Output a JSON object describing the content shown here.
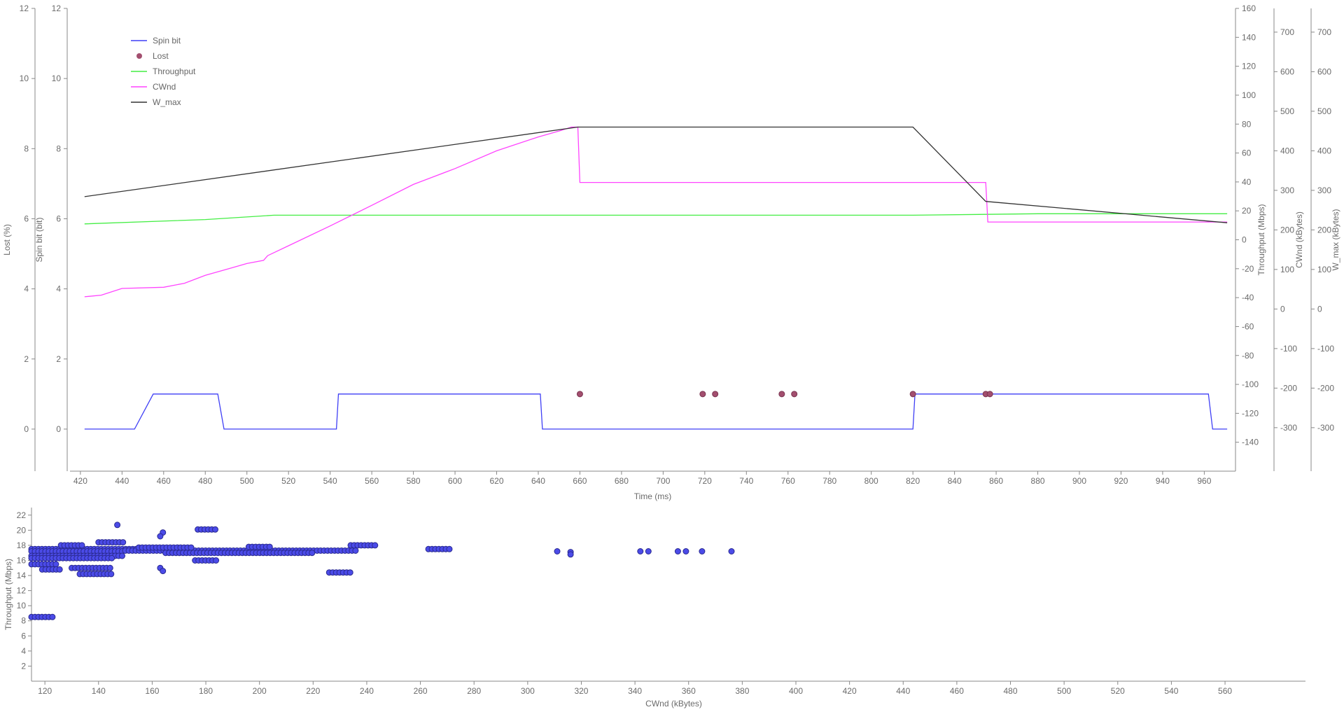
{
  "chart_data": [
    {
      "type": "line",
      "xlabel": "Time (ms)",
      "xlim": [
        415,
        975
      ],
      "x_ticks": [
        420,
        440,
        460,
        480,
        500,
        520,
        540,
        560,
        580,
        600,
        620,
        640,
        660,
        680,
        700,
        720,
        740,
        760,
        780,
        800,
        820,
        840,
        860,
        880,
        900,
        920,
        940,
        960
      ],
      "axes": {
        "lost": {
          "label": "Lost (%)",
          "ylim": [
            -1.2,
            12
          ],
          "ticks": [
            0,
            2,
            4,
            6,
            8,
            10,
            12
          ]
        },
        "spin": {
          "label": "Spin bit (bit)",
          "ylim": [
            -1.2,
            12
          ],
          "ticks": [
            0,
            2,
            4,
            6,
            8,
            10,
            12
          ]
        },
        "throughput": {
          "label": "Throughput (Mbps)",
          "ylim": [
            -160,
            160
          ],
          "ticks": [
            -140,
            -120,
            -100,
            -80,
            -60,
            -40,
            -20,
            0,
            20,
            40,
            60,
            80,
            100,
            120,
            140,
            160
          ]
        },
        "cwnd": {
          "label": "CWnd (kBytes)",
          "ylim": [
            -410,
            760
          ],
          "ticks": [
            -300,
            -200,
            -100,
            0,
            100,
            200,
            300,
            400,
            500,
            600,
            700
          ]
        },
        "wmax": {
          "label": "W_max (kBytes)",
          "ylim": [
            -410,
            760
          ],
          "ticks": [
            -300,
            -200,
            -100,
            0,
            100,
            200,
            300,
            400,
            500,
            600,
            700
          ]
        }
      },
      "legend": {
        "placement": "top-left",
        "entries": [
          {
            "name": "Spin bit",
            "color": "#3f3ff5",
            "marker": "line"
          },
          {
            "name": "Lost",
            "color": "#a34f6f",
            "marker": "dot"
          },
          {
            "name": "Throughput",
            "color": "#44ee44",
            "marker": "line"
          },
          {
            "name": "CWnd",
            "color": "#ff44ff",
            "marker": "line"
          },
          {
            "name": "W_max",
            "color": "#333333",
            "marker": "line"
          }
        ]
      },
      "series": [
        {
          "name": "Spin bit",
          "axis": "spin",
          "color": "#3f3ff5",
          "x": [
            422,
            446,
            455,
            486,
            489,
            543,
            544,
            641,
            642,
            820,
            821,
            962,
            964,
            971
          ],
          "y": [
            0,
            0,
            1,
            1,
            0,
            0,
            1,
            1,
            0,
            0,
            1,
            1,
            0,
            0
          ]
        },
        {
          "name": "Lost",
          "axis": "lost",
          "color": "#a34f6f",
          "kind": "scatter",
          "x": [
            660,
            719,
            725,
            757,
            763,
            820,
            855,
            857
          ],
          "y": [
            1,
            1,
            1,
            1,
            1,
            1,
            1,
            1
          ]
        },
        {
          "name": "Throughput",
          "axis": "throughput",
          "color": "#44ee44",
          "x": [
            422,
            480,
            513,
            600,
            700,
            820,
            880,
            971
          ],
          "y": [
            11,
            14,
            17,
            17,
            17,
            17,
            18,
            18
          ]
        },
        {
          "name": "CWnd",
          "axis": "cwnd",
          "color": "#ff44ff",
          "x": [
            422,
            430,
            440,
            460,
            470,
            480,
            490,
            500,
            508,
            510,
            520,
            540,
            560,
            580,
            600,
            620,
            640,
            650,
            656,
            658,
            659,
            660,
            700,
            800,
            854,
            855,
            856,
            971
          ],
          "y": [
            31,
            35,
            52,
            55,
            65,
            85,
            100,
            115,
            123,
            135,
            160,
            210,
            262,
            315,
            355,
            400,
            435,
            450,
            460,
            460,
            460,
            320,
            320,
            320,
            320,
            320,
            220,
            220
          ]
        },
        {
          "name": "W_max",
          "axis": "wmax",
          "color": "#333333",
          "x": [
            422,
            659,
            820,
            855,
            971
          ],
          "y": [
            284,
            460,
            460,
            272,
            218
          ]
        }
      ]
    },
    {
      "type": "scatter",
      "xlabel": "CWnd (kBytes)",
      "ylabel": "Throughput (Mbps)",
      "xlim": [
        115,
        590
      ],
      "ylim": [
        0,
        23
      ],
      "x_ticks": [
        120,
        140,
        160,
        180,
        200,
        220,
        240,
        260,
        280,
        300,
        320,
        340,
        360,
        380,
        400,
        420,
        440,
        460,
        480,
        500,
        520,
        540,
        560
      ],
      "y_ticks": [
        2,
        4,
        6,
        8,
        10,
        12,
        14,
        16,
        18,
        20,
        22
      ],
      "color": "#4b4be8",
      "clusters": [
        {
          "x_from": 115,
          "x_to": 165,
          "y": 17.5
        },
        {
          "x_from": 115,
          "x_to": 150,
          "y": 17.2
        },
        {
          "x_from": 115,
          "x_to": 150,
          "y": 16.6
        },
        {
          "x_from": 115,
          "x_to": 145,
          "y": 16.3
        },
        {
          "x_from": 115,
          "x_to": 125,
          "y": 15.5
        },
        {
          "x_from": 119,
          "x_to": 126,
          "y": 14.8
        },
        {
          "x_from": 115,
          "x_to": 124,
          "y": 8.5
        },
        {
          "x_from": 126,
          "x_to": 134,
          "y": 18.0
        },
        {
          "x_from": 130,
          "x_to": 145,
          "y": 15.0
        },
        {
          "x_from": 133,
          "x_to": 145,
          "y": 14.2
        },
        {
          "x_from": 140,
          "x_to": 150,
          "y": 18.4
        },
        {
          "x_from": 150,
          "x_to": 236,
          "y": 17.3
        },
        {
          "x_from": 155,
          "x_to": 175,
          "y": 17.7
        },
        {
          "x_from": 165,
          "x_to": 220,
          "y": 17.0
        },
        {
          "x_from": 176,
          "x_to": 184,
          "y": 16.0
        },
        {
          "x_from": 177,
          "x_to": 184,
          "y": 20.1
        },
        {
          "x_from": 196,
          "x_to": 204,
          "y": 17.8
        },
        {
          "x_from": 226,
          "x_to": 234,
          "y": 14.4
        },
        {
          "x_from": 234,
          "x_to": 244,
          "y": 18.0
        },
        {
          "x_from": 263,
          "x_to": 272,
          "y": 17.5
        }
      ],
      "points": [
        {
          "x": 147,
          "y": 20.7
        },
        {
          "x": 164,
          "y": 19.7
        },
        {
          "x": 163,
          "y": 19.2
        },
        {
          "x": 163,
          "y": 15.0
        },
        {
          "x": 164,
          "y": 14.6
        },
        {
          "x": 311,
          "y": 17.2
        },
        {
          "x": 316,
          "y": 17.1
        },
        {
          "x": 316,
          "y": 16.8
        },
        {
          "x": 342,
          "y": 17.2
        },
        {
          "x": 345,
          "y": 17.2
        },
        {
          "x": 356,
          "y": 17.2
        },
        {
          "x": 359,
          "y": 17.2
        },
        {
          "x": 365,
          "y": 17.2
        },
        {
          "x": 376,
          "y": 17.2
        }
      ]
    }
  ]
}
